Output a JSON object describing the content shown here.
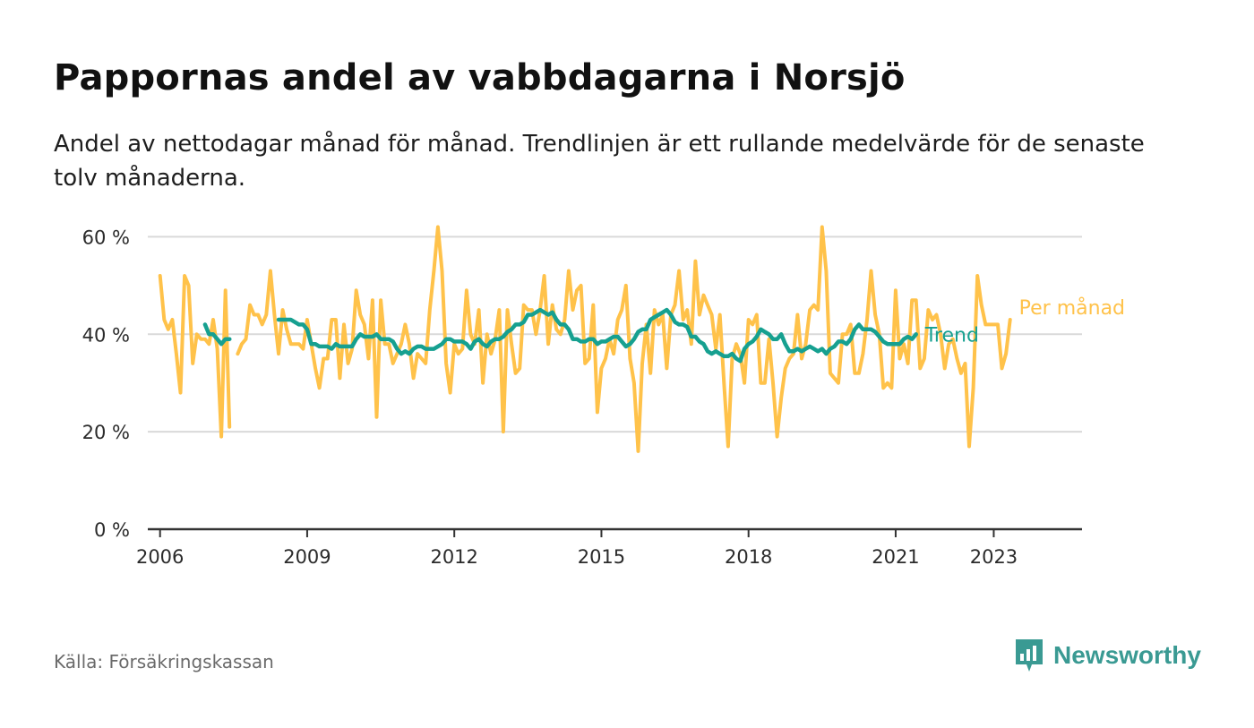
{
  "header": {
    "title": "Pappornas andel av vabbdagarna i Norsjö",
    "subtitle": "Andel av nettodagar månad för månad. Trendlinjen är ett rullande medelvärde för de senaste tolv månaderna."
  },
  "footer": {
    "source": "Källa: Försäkringskassan",
    "brand": "Newsworthy"
  },
  "colors": {
    "monthly": "#ffc24a",
    "trend": "#16a090",
    "grid": "#d9d9d9",
    "axis": "#333333",
    "brand": "#3a9a93"
  },
  "chart_data": {
    "type": "line",
    "ylim": [
      0,
      70
    ],
    "yticks": [
      0,
      20,
      40,
      60
    ],
    "ytick_labels": [
      "0 %",
      "20 %",
      "40 %",
      "60 %"
    ],
    "xlim": [
      2005.75,
      2024.8
    ],
    "xticks": [
      2006,
      2009,
      2012,
      2015,
      2018,
      2021,
      2023
    ],
    "xtick_labels": [
      "2006",
      "2009",
      "2012",
      "2015",
      "2018",
      "2021",
      "2023"
    ],
    "grid": true,
    "series": [
      {
        "name": "Per månad",
        "start": 2006.0,
        "step": 0.08333,
        "values": [
          52,
          43,
          41,
          43,
          36,
          28,
          52,
          50,
          34,
          40,
          39,
          39,
          38,
          43,
          37,
          19,
          49,
          21,
          null,
          36,
          38,
          39,
          46,
          44,
          44,
          42,
          44,
          53,
          44,
          36,
          45,
          41,
          38,
          38,
          38,
          37,
          43,
          38,
          33,
          29,
          35,
          35,
          43,
          43,
          31,
          42,
          34,
          37,
          49,
          44,
          42,
          35,
          47,
          23,
          47,
          38,
          38,
          34,
          36,
          38,
          42,
          38,
          31,
          36,
          35,
          34,
          45,
          53,
          62,
          53,
          34,
          28,
          38,
          36,
          37,
          49,
          40,
          38,
          45,
          30,
          40,
          36,
          39,
          45,
          20,
          45,
          38,
          32,
          33,
          46,
          45,
          45,
          40,
          45,
          52,
          38,
          46,
          41,
          40,
          43,
          53,
          45,
          49,
          50,
          34,
          35,
          46,
          24,
          33,
          35,
          39,
          36,
          43,
          45,
          50,
          35,
          30,
          16,
          34,
          42,
          32,
          45,
          42,
          44,
          33,
          44,
          46,
          53,
          43,
          45,
          38,
          55,
          44,
          48,
          46,
          44,
          37,
          44,
          30,
          17,
          35,
          38,
          36,
          30,
          43,
          42,
          44,
          30,
          30,
          39,
          30,
          19,
          27,
          33,
          35,
          36,
          44,
          35,
          38,
          45,
          46,
          45,
          62,
          53,
          32,
          31,
          30,
          40,
          40,
          42,
          32,
          32,
          36,
          43,
          53,
          44,
          40,
          29,
          30,
          29,
          49,
          35,
          38,
          34,
          47,
          47,
          33,
          35,
          45,
          43,
          44,
          40,
          33,
          38,
          39,
          35,
          32,
          34,
          17,
          29,
          52,
          46,
          42,
          42,
          42,
          42,
          33,
          36,
          43
        ]
      },
      {
        "name": "Trend",
        "start": 2006.9167,
        "step": 0.08333,
        "values": [
          42,
          40,
          40,
          39,
          38,
          39,
          39,
          null,
          null,
          null,
          null,
          null,
          null,
          null,
          null,
          null,
          null,
          null,
          43,
          43,
          43,
          43,
          42.5,
          42,
          42,
          41,
          38,
          38,
          37.5,
          37.5,
          37.5,
          37,
          38,
          37.5,
          37.5,
          37.5,
          37.5,
          39,
          40,
          39.5,
          39.5,
          39.5,
          40,
          39,
          39,
          39,
          38.5,
          37,
          36,
          36.5,
          36,
          37,
          37.5,
          37.5,
          37,
          37,
          37,
          37.5,
          38,
          39,
          39,
          38.5,
          38.5,
          38.5,
          38,
          37,
          38.5,
          39,
          38,
          37.5,
          38.5,
          39,
          39,
          39.5,
          40.5,
          41,
          42,
          42,
          42.5,
          44,
          44,
          44.5,
          45,
          44.5,
          44,
          44.5,
          43,
          42,
          42,
          41,
          39,
          39,
          38.5,
          38.5,
          39,
          39,
          38,
          38.5,
          38.5,
          39,
          39.5,
          39.5,
          38.5,
          37.5,
          38,
          39,
          40.5,
          41,
          41,
          43,
          43.5,
          44,
          44.5,
          45,
          44,
          42.5,
          42,
          42,
          41.5,
          39.5,
          39.5,
          38.5,
          38,
          36.5,
          36,
          36.5,
          36,
          35.5,
          35.5,
          36,
          35,
          34.5,
          37,
          38,
          38.5,
          39.5,
          41,
          40.5,
          40,
          39,
          39,
          40,
          38,
          36.5,
          36.5,
          37,
          36.5,
          37,
          37.5,
          37,
          36.5,
          37,
          36,
          37,
          37.5,
          38.5,
          38.5,
          38,
          39,
          41,
          42,
          41,
          41,
          41,
          40.5,
          39.5,
          38.5,
          38,
          38,
          38,
          38,
          39,
          39.5,
          39,
          40
        ]
      }
    ]
  }
}
